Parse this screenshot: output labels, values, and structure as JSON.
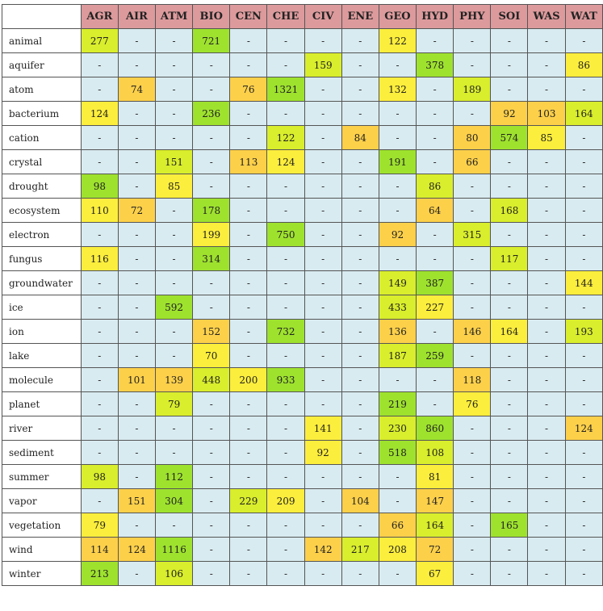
{
  "chart_data": {
    "type": "heatmap",
    "columns": [
      "AGR",
      "AIR",
      "ATM",
      "BIO",
      "CEN",
      "CHE",
      "CIV",
      "ENE",
      "GEO",
      "HYD",
      "PHY",
      "SOI",
      "WAS",
      "WAT"
    ],
    "missing_marker": "-",
    "rows": [
      {
        "label": "animal",
        "values": [
          277,
          null,
          null,
          721,
          null,
          null,
          null,
          null,
          122,
          null,
          null,
          null,
          null,
          null
        ]
      },
      {
        "label": "aquifer",
        "values": [
          null,
          null,
          null,
          null,
          null,
          null,
          159,
          null,
          null,
          378,
          null,
          null,
          null,
          86
        ]
      },
      {
        "label": "atom",
        "values": [
          null,
          74,
          null,
          null,
          76,
          1321,
          null,
          null,
          132,
          null,
          189,
          null,
          null,
          null
        ]
      },
      {
        "label": "bacterium",
        "values": [
          124,
          null,
          null,
          236,
          null,
          null,
          null,
          null,
          null,
          null,
          null,
          92,
          103,
          164
        ]
      },
      {
        "label": "cation",
        "values": [
          null,
          null,
          null,
          null,
          null,
          122,
          null,
          84,
          null,
          null,
          80,
          574,
          85,
          null
        ]
      },
      {
        "label": "crystal",
        "values": [
          null,
          null,
          151,
          null,
          113,
          124,
          null,
          null,
          191,
          null,
          66,
          null,
          null,
          null
        ]
      },
      {
        "label": "drought",
        "values": [
          98,
          null,
          85,
          null,
          null,
          null,
          null,
          null,
          null,
          86,
          null,
          null,
          null,
          null
        ]
      },
      {
        "label": "ecosystem",
        "values": [
          110,
          72,
          null,
          178,
          null,
          null,
          null,
          null,
          null,
          64,
          null,
          168,
          null,
          null
        ]
      },
      {
        "label": "electron",
        "values": [
          null,
          null,
          null,
          199,
          null,
          750,
          null,
          null,
          92,
          null,
          315,
          null,
          null,
          null
        ]
      },
      {
        "label": "fungus",
        "values": [
          116,
          null,
          null,
          314,
          null,
          null,
          null,
          null,
          null,
          null,
          null,
          117,
          null,
          null
        ]
      },
      {
        "label": "groundwater",
        "values": [
          null,
          null,
          null,
          null,
          null,
          null,
          null,
          null,
          149,
          387,
          null,
          null,
          null,
          144
        ]
      },
      {
        "label": "ice",
        "values": [
          null,
          null,
          592,
          null,
          null,
          null,
          null,
          null,
          433,
          227,
          null,
          null,
          null,
          null
        ]
      },
      {
        "label": "ion",
        "values": [
          null,
          null,
          null,
          152,
          null,
          732,
          null,
          null,
          136,
          null,
          146,
          164,
          null,
          193
        ]
      },
      {
        "label": "lake",
        "values": [
          null,
          null,
          null,
          70,
          null,
          null,
          null,
          null,
          187,
          259,
          null,
          null,
          null,
          null
        ]
      },
      {
        "label": "molecule",
        "values": [
          null,
          101,
          139,
          448,
          200,
          933,
          null,
          null,
          null,
          null,
          118,
          null,
          null,
          null
        ]
      },
      {
        "label": "planet",
        "values": [
          null,
          null,
          79,
          null,
          null,
          null,
          null,
          null,
          219,
          null,
          76,
          null,
          null,
          null
        ]
      },
      {
        "label": "river",
        "values": [
          null,
          null,
          null,
          null,
          null,
          null,
          141,
          null,
          230,
          860,
          null,
          null,
          null,
          124
        ]
      },
      {
        "label": "sediment",
        "values": [
          null,
          null,
          null,
          null,
          null,
          null,
          92,
          null,
          518,
          108,
          null,
          null,
          null,
          null
        ]
      },
      {
        "label": "summer",
        "values": [
          98,
          null,
          112,
          null,
          null,
          null,
          null,
          null,
          null,
          81,
          null,
          null,
          null,
          null
        ]
      },
      {
        "label": "vapor",
        "values": [
          null,
          151,
          304,
          null,
          229,
          209,
          null,
          104,
          null,
          147,
          null,
          null,
          null,
          null
        ]
      },
      {
        "label": "vegetation",
        "values": [
          79,
          null,
          null,
          null,
          null,
          null,
          null,
          null,
          66,
          164,
          null,
          165,
          null,
          null
        ]
      },
      {
        "label": "wind",
        "values": [
          114,
          124,
          1116,
          null,
          null,
          null,
          142,
          217,
          208,
          72,
          null,
          null,
          null,
          null
        ]
      },
      {
        "label": "winter",
        "values": [
          213,
          null,
          106,
          null,
          null,
          null,
          null,
          null,
          null,
          67,
          null,
          null,
          null,
          null
        ]
      }
    ],
    "colors": {
      "header_bg": "#dc9a9c",
      "empty_bg": "#d8ebf0",
      "rank_high": "#9ee22e",
      "rank_mid": "#d9ee2c",
      "rank_low": "#fcee3c",
      "rank_lowest": "#fdd04a"
    }
  }
}
